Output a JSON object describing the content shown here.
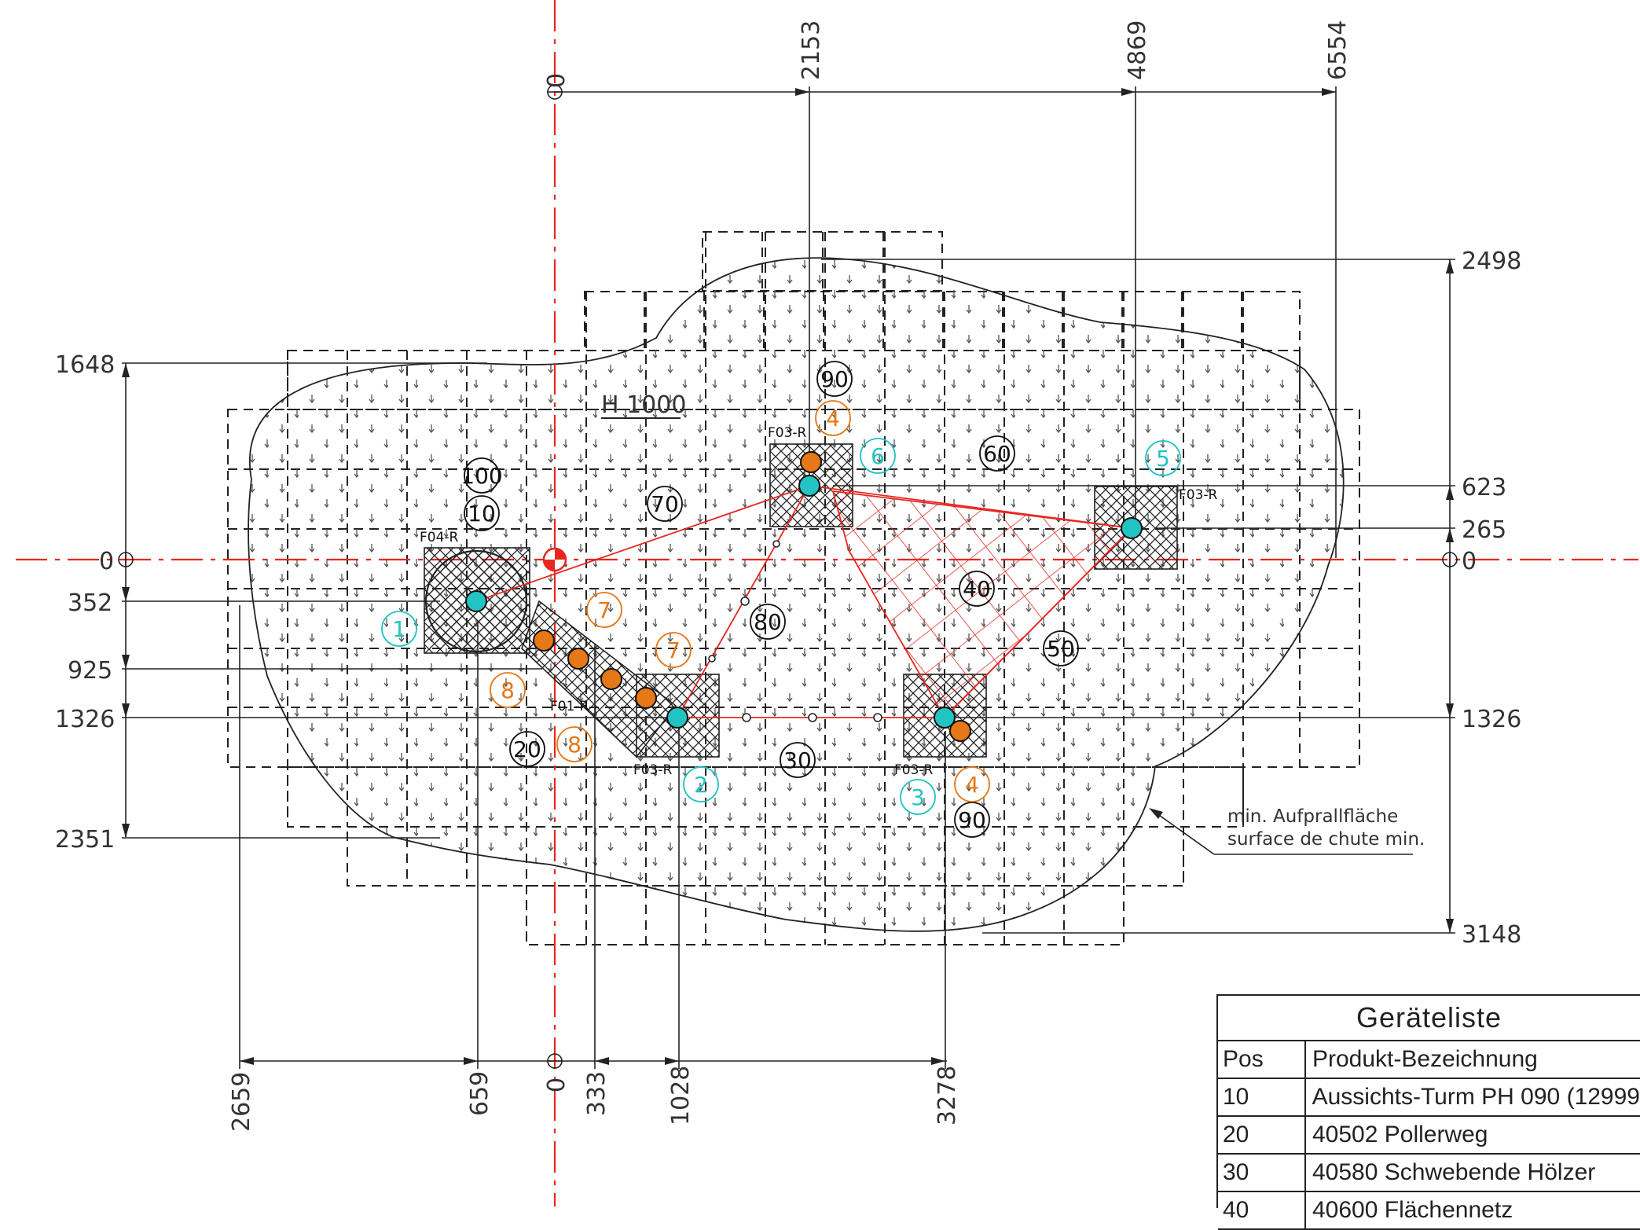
{
  "dims": {
    "top": [
      "0",
      "2153",
      "4869",
      "6554"
    ],
    "left": [
      "1648",
      "0",
      "352",
      "925",
      "1326",
      "2351"
    ],
    "right": [
      "2498",
      "623",
      "265",
      "0",
      "1326",
      "3148"
    ],
    "bottom": [
      "2659",
      "659",
      "0",
      "333",
      "1028",
      "3278"
    ]
  },
  "height_label": "H 1000",
  "tags": {
    "f04": "F04-R",
    "f03_top": "F03-R",
    "f03_right": "F03-R",
    "f01": "F01-R",
    "f03_mid": "F03-R",
    "f03_bottom": "F03-R"
  },
  "black_numbers": [
    "100",
    "10",
    "70",
    "90",
    "60",
    "80",
    "40",
    "50",
    "20",
    "30",
    "90"
  ],
  "cyan_numbers": [
    "1",
    "2",
    "3",
    "5",
    "6"
  ],
  "orange_numbers": [
    "4",
    "4",
    "7",
    "7",
    "8",
    "8"
  ],
  "note": {
    "line1": "min. Aufprallfläche",
    "line2": "surface de chute min."
  },
  "legend": {
    "title": "Geräteliste",
    "header": {
      "pos": "Pos",
      "name": "Produkt-Bezeichnung"
    },
    "rows": [
      {
        "pos": "10",
        "name": "Aussichts-Turm PH 090 (12999"
      },
      {
        "pos": "20",
        "name": "40502 Pollerweg"
      },
      {
        "pos": "30",
        "name": "40580 Schwebende Hölzer"
      },
      {
        "pos": "40",
        "name": "40600 Flächennetz"
      }
    ]
  },
  "colors": {
    "line": "#1a1a1a",
    "red": "#e8261f",
    "cyan": "#22c3c3",
    "orange": "#e67817"
  }
}
